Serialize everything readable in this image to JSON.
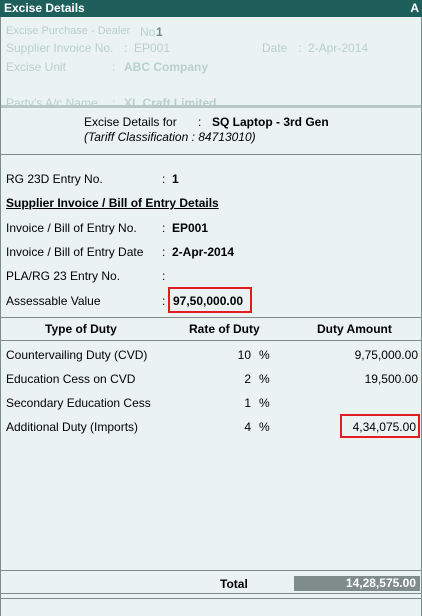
{
  "window": {
    "title": "Excise Details",
    "corner_label": "A"
  },
  "background_form": {
    "voucher_label": "Excise Purchase - Dealer",
    "no_label": "No.",
    "no_value": "1",
    "supplier_invoice_label": "Supplier Invoice No.",
    "supplier_invoice_colon": ":",
    "supplier_invoice_value": "EP001",
    "date_label": "Date",
    "date_colon": ":",
    "date_value": "2-Apr-2014",
    "excise_unit_label": "Excise Unit",
    "excise_unit_colon": ":",
    "excise_unit_value": "ABC Company",
    "party_label": "Party's A/c Name",
    "party_colon": ":",
    "party_value": "XL Craft Limited"
  },
  "header": {
    "excise_details_for_label": "Excise Details for",
    "colon": ":",
    "item_name": "SQ Laptop - 3rd Gen",
    "tariff_line": "(Tariff Classification : 84713010)"
  },
  "details": {
    "rg23d_label": "RG 23D Entry No.",
    "rg23d_value": "1",
    "section_title": "Supplier Invoice / Bill of Entry Details",
    "invoice_no_label": "Invoice / Bill of Entry No.",
    "invoice_no_value": "EP001",
    "invoice_date_label": "Invoice / Bill of Entry Date",
    "invoice_date_value": "2-Apr-2014",
    "pla_label": "PLA/RG 23 Entry No.",
    "assessable_label": "Assessable Value",
    "assessable_value": "97,50,000.00",
    "colon": ":"
  },
  "duty_table": {
    "headers": {
      "type": "Type of Duty",
      "rate": "Rate of Duty",
      "amount": "Duty Amount"
    },
    "rows": [
      {
        "type": "Countervailing Duty (CVD)",
        "rate": "10",
        "unit": "%",
        "amount": "9,75,000.00"
      },
      {
        "type": "Education Cess on CVD",
        "rate": "2",
        "unit": "%",
        "amount": "19,500.00"
      },
      {
        "type": "Secondary Education Cess",
        "rate": "1",
        "unit": "%",
        "amount": ""
      },
      {
        "type": "Additional Duty (Imports)",
        "rate": "4",
        "unit": "%",
        "amount": "4,34,075.00"
      }
    ]
  },
  "footer": {
    "total_label": "Total",
    "total_value": "14,28,575.00"
  },
  "colors": {
    "title_bar": "#1f5f5b",
    "highlight_border": "#e31b23",
    "total_box": "#7f8c8b",
    "background": "#eaf3f2"
  }
}
